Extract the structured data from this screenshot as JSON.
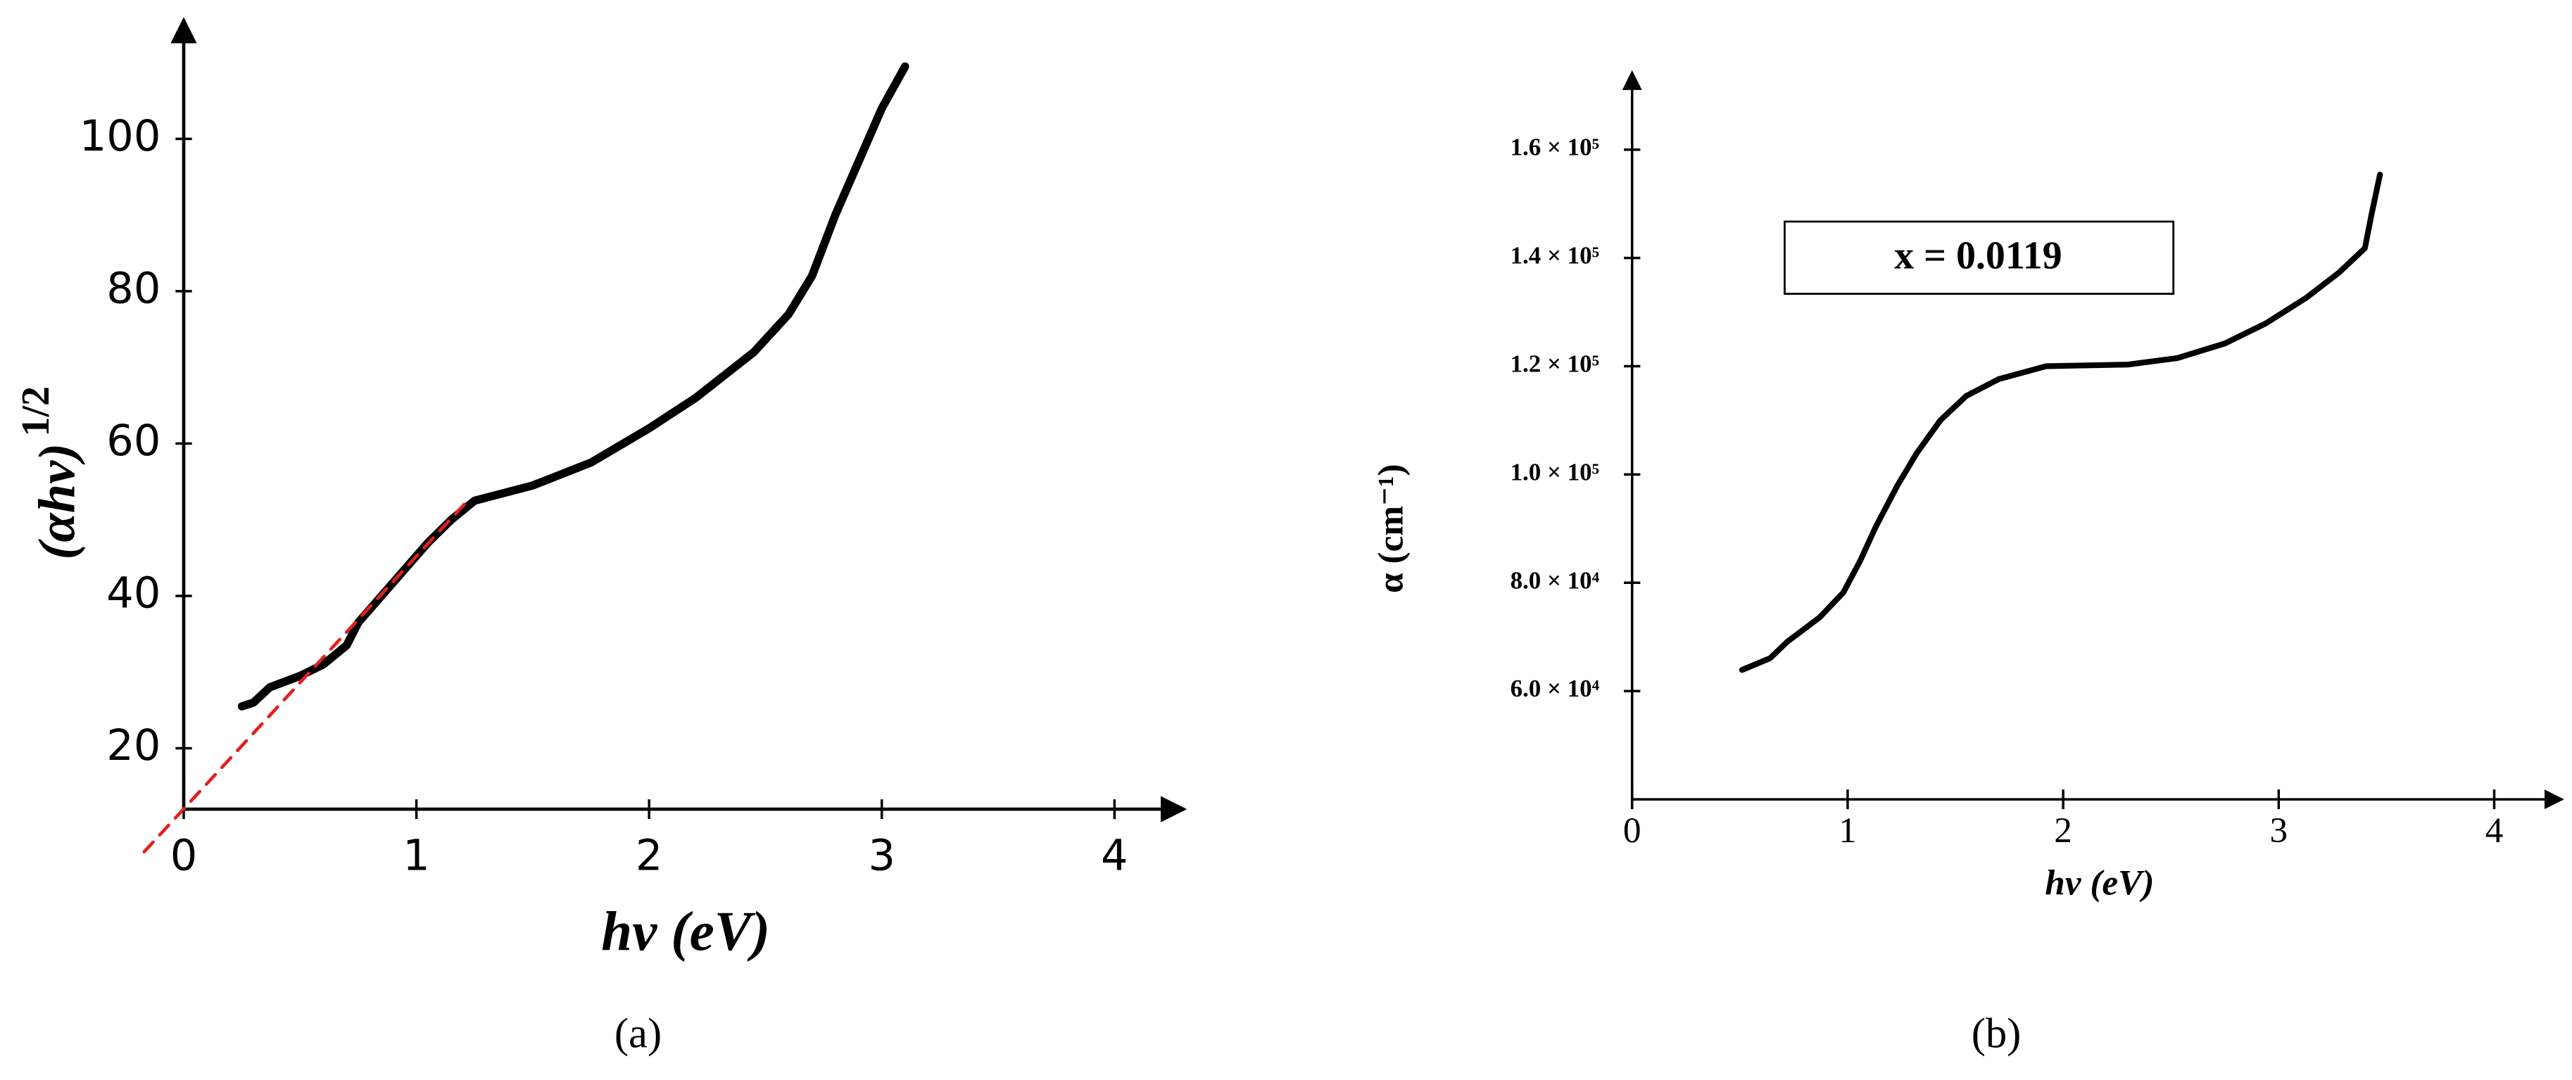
{
  "chart_data": [
    {
      "type": "line",
      "caption": "(a)",
      "xlabel": "hν (eV)",
      "ylabel": "(αhν)",
      "ylabel_superscript": "1/2",
      "xlim": [
        0,
        4.3
      ],
      "ylim": [
        12,
        115
      ],
      "xticks": [
        0,
        1,
        2,
        3,
        4
      ],
      "yticks": [
        20,
        40,
        60,
        80,
        100
      ],
      "series": [
        {
          "color": "#000000",
          "linestyle": "solid",
          "x": [
            0.25,
            0.3,
            0.37,
            0.5,
            0.6,
            0.7,
            0.75,
            0.85,
            0.95,
            1.05,
            1.15,
            1.25,
            1.5,
            1.75,
            2.0,
            2.2,
            2.45,
            2.6,
            2.7,
            2.8,
            2.9,
            3.0,
            3.1
          ],
          "values": [
            25.5,
            26,
            28,
            29.5,
            31,
            33.5,
            36.5,
            40,
            43.5,
            47,
            50,
            52.5,
            54.5,
            57.5,
            62,
            66,
            72,
            77,
            82,
            90,
            97,
            104,
            109.5
          ]
        },
        {
          "color": "#e02020",
          "linestyle": "dashed",
          "x": [
            -0.17,
            1.22
          ],
          "values": [
            6.4,
            52.5
          ]
        }
      ]
    },
    {
      "type": "line",
      "caption": "(b)",
      "xlabel": "hν (eV)",
      "ylabel": "α (cm⁻¹)",
      "annotation": "x = 0.0119",
      "xlim": [
        0,
        4.3
      ],
      "ylim": [
        40000,
        174000
      ],
      "xticks": [
        0,
        1,
        2,
        3,
        4
      ],
      "yticks": [
        {
          "value": 60000,
          "label": "6.0 × 10⁴"
        },
        {
          "value": 80000,
          "label": "8.0 × 10⁴"
        },
        {
          "value": 100000,
          "label": "1.0 × 10⁵"
        },
        {
          "value": 120000,
          "label": "1.2 × 10⁵"
        },
        {
          "value": 140000,
          "label": "1.4 × 10⁵"
        },
        {
          "value": 160000,
          "label": "1.6 × 10⁵"
        }
      ],
      "series": [
        {
          "color": "#000000",
          "linestyle": "solid",
          "x": [
            0.51,
            0.64,
            0.72,
            0.87,
            0.98,
            1.06,
            1.13,
            1.23,
            1.32,
            1.43,
            1.55,
            1.7,
            1.92,
            2.3,
            2.53,
            2.75,
            2.94,
            3.13,
            3.28,
            3.4,
            3.43,
            3.47
          ],
          "values": [
            63900,
            66060,
            69100,
            73600,
            78200,
            84200,
            90300,
            97900,
            103900,
            110000,
            114500,
            117600,
            120000,
            120300,
            121500,
            124200,
            127900,
            132700,
            137300,
            141800,
            147900,
            155400
          ]
        }
      ]
    }
  ]
}
